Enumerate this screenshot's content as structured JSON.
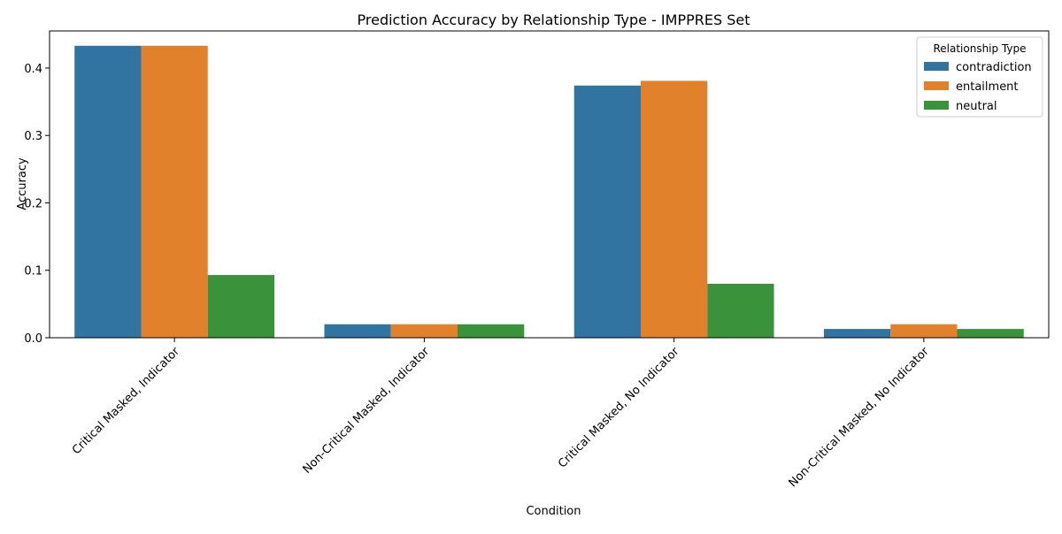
{
  "chart_data": {
    "type": "bar",
    "title": "Prediction Accuracy by Relationship Type - IMPPRES Set",
    "xlabel": "Condition",
    "ylabel": "Accuracy",
    "categories": [
      "Critical Masked, Indicator",
      "Non-Critical Masked, Indicator",
      "Critical Masked, No Indicator",
      "Non-Critical Masked, No Indicator"
    ],
    "series": [
      {
        "name": "contradiction",
        "color": "#3274a1",
        "values": [
          0.433,
          0.02,
          0.374,
          0.013
        ]
      },
      {
        "name": "entailment",
        "color": "#e1812c",
        "values": [
          0.433,
          0.02,
          0.381,
          0.02
        ]
      },
      {
        "name": "neutral",
        "color": "#3a923a",
        "values": [
          0.093,
          0.02,
          0.08,
          0.013
        ]
      }
    ],
    "ylim": [
      0,
      0.455
    ],
    "yticks": [
      0.0,
      0.1,
      0.2,
      0.3,
      0.4
    ],
    "ytick_labels": [
      "0.0",
      "0.1",
      "0.2",
      "0.3",
      "0.4"
    ],
    "grid": false,
    "legend": {
      "title": "Relationship Type",
      "placement": "top-right"
    }
  }
}
